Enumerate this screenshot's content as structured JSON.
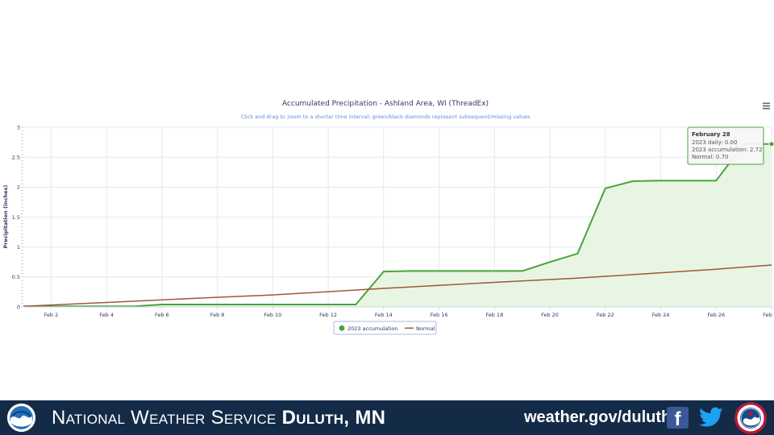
{
  "chart_data": {
    "type": "area",
    "title": "Accumulated Precipitation - Ashland Area, WI (ThreadEx)",
    "subtitle": "Click and drag to zoom to a shorter time interval; green/black diamonds represent subsequent/missing values",
    "ylabel": "Precipitation (inches)",
    "xlabel": "",
    "x_domain": [
      "2023-02-01",
      "2023-02-28"
    ],
    "ylim": [
      0,
      3
    ],
    "y_ticks": [
      0,
      0.5,
      1,
      1.5,
      2,
      2.5,
      3
    ],
    "y_tick_labels": [
      "0",
      "0.5",
      "1",
      "1.5",
      "2",
      "2.5",
      "3"
    ],
    "x_ticks": [
      "2023-02-02",
      "2023-02-04",
      "2023-02-06",
      "2023-02-08",
      "2023-02-10",
      "2023-02-12",
      "2023-02-14",
      "2023-02-16",
      "2023-02-18",
      "2023-02-20",
      "2023-02-22",
      "2023-02-24",
      "2023-02-26",
      "2023-02-28"
    ],
    "x_tick_labels": [
      "Feb 2",
      "Feb 4",
      "Feb 6",
      "Feb 8",
      "Feb 10",
      "Feb 12",
      "Feb 14",
      "Feb 16",
      "Feb 18",
      "Feb 20",
      "Feb 22",
      "Feb 24",
      "Feb 26",
      "Feb"
    ],
    "grid": true,
    "legend_placement": "bottom-center",
    "series": [
      {
        "name": "2023 accumulation",
        "color": "#49a33b",
        "fill": "#e9f5e3",
        "style": "area",
        "points": [
          [
            "2023-02-01",
            0.01
          ],
          [
            "2023-02-02",
            0.01
          ],
          [
            "2023-02-03",
            0.01
          ],
          [
            "2023-02-04",
            0.01
          ],
          [
            "2023-02-05",
            0.01
          ],
          [
            "2023-02-06",
            0.04
          ],
          [
            "2023-02-07",
            0.04
          ],
          [
            "2023-02-08",
            0.04
          ],
          [
            "2023-02-09",
            0.04
          ],
          [
            "2023-02-10",
            0.04
          ],
          [
            "2023-02-11",
            0.04
          ],
          [
            "2023-02-12",
            0.04
          ],
          [
            "2023-02-13",
            0.04
          ],
          [
            "2023-02-14",
            0.59
          ],
          [
            "2023-02-15",
            0.6
          ],
          [
            "2023-02-16",
            0.6
          ],
          [
            "2023-02-17",
            0.6
          ],
          [
            "2023-02-18",
            0.6
          ],
          [
            "2023-02-19",
            0.6
          ],
          [
            "2023-02-20",
            0.75
          ],
          [
            "2023-02-21",
            0.89
          ],
          [
            "2023-02-22",
            1.98
          ],
          [
            "2023-02-23",
            2.1
          ],
          [
            "2023-02-24",
            2.11
          ],
          [
            "2023-02-25",
            2.11
          ],
          [
            "2023-02-26",
            2.11
          ],
          [
            "2023-02-27",
            2.72
          ],
          [
            "2023-02-28",
            2.72
          ]
        ]
      },
      {
        "name": "Normal",
        "color": "#a0573a",
        "style": "line",
        "points": [
          [
            "2023-02-01",
            0.01
          ],
          [
            "2023-02-07",
            0.14
          ],
          [
            "2023-02-10",
            0.2
          ],
          [
            "2023-02-14",
            0.31
          ],
          [
            "2023-02-18",
            0.41
          ],
          [
            "2023-02-21",
            0.48
          ],
          [
            "2023-02-24",
            0.57
          ],
          [
            "2023-02-26",
            0.63
          ],
          [
            "2023-02-28",
            0.7
          ]
        ]
      }
    ],
    "tooltip": {
      "title": "February 28",
      "lines": [
        "2023 daily: 0.00",
        "2023 accumulation: 2.72",
        "Normal: 0.70"
      ]
    }
  },
  "colors": {
    "accent": "#49a33b",
    "normal": "#a0573a",
    "footer_background": "#142b48",
    "gridline": "#d8e6f2"
  },
  "icons": {
    "menu": "hamburger-menu-icon",
    "noaa": "noaa-logo-icon",
    "facebook": "facebook-icon",
    "twitter": "twitter-icon",
    "nws": "nws-logo-icon"
  },
  "footer": {
    "title_prefix": "National Weather Service",
    "title_city": "Duluth, MN",
    "url": "weather.gov/duluth",
    "facebook_glyph": "f"
  }
}
